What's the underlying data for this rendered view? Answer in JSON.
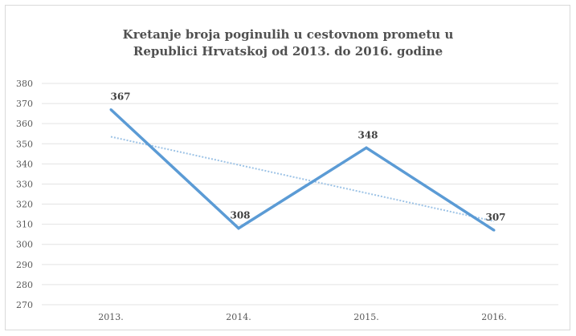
{
  "chart_data": {
    "type": "line",
    "title_line1": "Kretanje broja poginulih u cestovnom prometu u",
    "title_line2": "Republici Hrvatskoj od 2013. do 2016. godine",
    "categories": [
      "2013.",
      "2014.",
      "2015.",
      "2016."
    ],
    "series": [
      {
        "values": [
          367,
          308,
          348,
          307
        ],
        "color": "#5b9bd5"
      }
    ],
    "trendline": {
      "color": "#9dc3e6",
      "style": "dotted"
    },
    "data_labels": [
      "367",
      "308",
      "348",
      "307"
    ],
    "ylim": [
      270,
      380
    ],
    "yticks": [
      "380",
      "370",
      "360",
      "350",
      "340",
      "330",
      "320",
      "310",
      "300",
      "290",
      "280",
      "270"
    ],
    "grid": true
  }
}
